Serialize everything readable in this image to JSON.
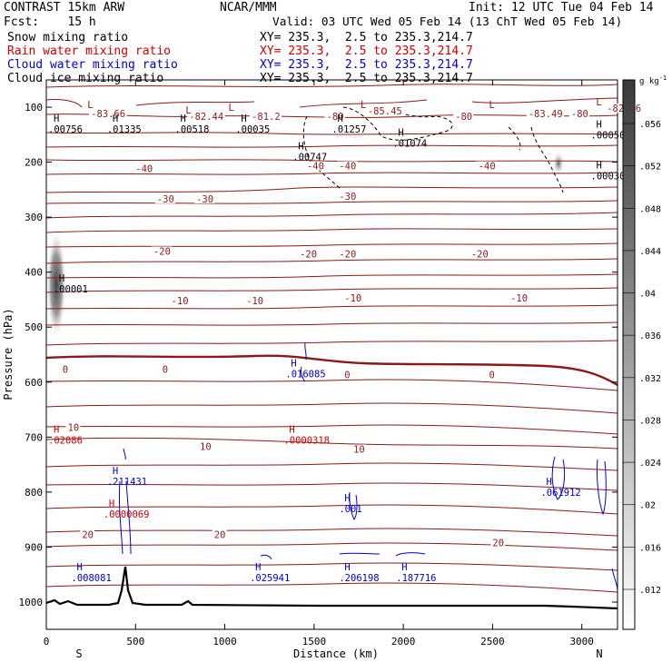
{
  "header": {
    "title": "CONTRAST 15km ARW",
    "center": "NCAR/MMM",
    "init": "Init: 12 UTC Tue 04 Feb 14",
    "fcst": "Fcst:    15 h",
    "valid": "Valid: 03 UTC Wed 05 Feb 14 (13 ChT Wed 05 Feb 14)"
  },
  "fields": [
    {
      "name": "Snow mixing ratio",
      "xy": "XY= 235.3,  2.5 to 235.3,214.7",
      "color": "#000000"
    },
    {
      "name": "Rain water mixing ratio",
      "xy": "XY= 235.3,  2.5 to 235.3,214.7",
      "color": "#cc0000"
    },
    {
      "name": "Cloud water mixing ratio",
      "xy": "XY= 235.3,  2.5 to 235.3,214.7",
      "color": "#0000cc"
    },
    {
      "name": "Cloud ice mixing ratio",
      "xy": "XY= 235.3,  2.5 to 235.3,214.7",
      "color": "#000000"
    }
  ],
  "chart_data": {
    "type": "contour-cross-section",
    "xlabel": "Distance (km)",
    "ylabel": "Pressure (hPa)",
    "xlim": [
      0,
      3200
    ],
    "ylim": [
      1050,
      50
    ],
    "x_ticks": [
      0,
      500,
      1000,
      1500,
      2000,
      2500,
      3000
    ],
    "y_ticks": [
      100,
      200,
      300,
      400,
      500,
      600,
      700,
      800,
      900,
      1000
    ],
    "x_end_labels": [
      "S",
      "N"
    ],
    "temperature_contour_levels": [
      -80,
      -40,
      -30,
      -20,
      -10,
      0,
      10,
      20
    ],
    "temperature_labels": [
      {
        "text": "-83.66",
        "x": 250,
        "p": 115
      },
      {
        "text": "-82.44",
        "x": 800,
        "p": 120
      },
      {
        "text": "-81.2",
        "x": 1150,
        "p": 120
      },
      {
        "text": "-80",
        "x": 1570,
        "p": 120
      },
      {
        "text": "-85.45",
        "x": 1800,
        "p": 110
      },
      {
        "text": "-80",
        "x": 2290,
        "p": 120
      },
      {
        "text": "-83.49",
        "x": 2700,
        "p": 115
      },
      {
        "text": "-80",
        "x": 2940,
        "p": 115
      },
      {
        "text": "-82.56",
        "x": 3140,
        "p": 105
      },
      {
        "text": "-40",
        "x": 1460,
        "p": 210
      },
      {
        "text": "-40",
        "x": 1640,
        "p": 210
      },
      {
        "text": "-40",
        "x": 500,
        "p": 215
      },
      {
        "text": "-40",
        "x": 2420,
        "p": 210
      },
      {
        "text": "-30",
        "x": 620,
        "p": 270
      },
      {
        "text": "-30",
        "x": 840,
        "p": 270
      },
      {
        "text": "-30",
        "x": 1640,
        "p": 265
      },
      {
        "text": "-20",
        "x": 600,
        "p": 365
      },
      {
        "text": "-20",
        "x": 1420,
        "p": 370
      },
      {
        "text": "-20",
        "x": 1640,
        "p": 370
      },
      {
        "text": "-20",
        "x": 2380,
        "p": 370
      },
      {
        "text": "-10",
        "x": 700,
        "p": 455
      },
      {
        "text": "-10",
        "x": 1120,
        "p": 455
      },
      {
        "text": "-10",
        "x": 1670,
        "p": 450
      },
      {
        "text": "-10",
        "x": 2600,
        "p": 450
      },
      {
        "text": "0",
        "x": 90,
        "p": 580
      },
      {
        "text": "0",
        "x": 650,
        "p": 580
      },
      {
        "text": "0",
        "x": 1670,
        "p": 590
      },
      {
        "text": "0",
        "x": 2480,
        "p": 590
      },
      {
        "text": "10",
        "x": 860,
        "p": 720
      },
      {
        "text": "10",
        "x": 1720,
        "p": 725
      },
      {
        "text": "10",
        "x": 120,
        "p": 685
      },
      {
        "text": "20",
        "x": 200,
        "p": 880
      },
      {
        "text": "20",
        "x": 940,
        "p": 880
      },
      {
        "text": "20",
        "x": 2500,
        "p": 895
      }
    ],
    "low_markers": [
      {
        "x": 230,
        "p": 95
      },
      {
        "x": 780,
        "p": 105
      },
      {
        "x": 1020,
        "p": 100
      },
      {
        "x": 1760,
        "p": 95
      },
      {
        "x": 2480,
        "p": 95
      },
      {
        "x": 3080,
        "p": 90
      }
    ],
    "maxima_labels": [
      {
        "text": ".00756",
        "x": 0,
        "p": 140,
        "color": "#000000"
      },
      {
        "text": ".01335",
        "x": 340,
        "p": 140,
        "color": "#000000"
      },
      {
        "text": ".00518",
        "x": 720,
        "p": 140,
        "color": "#000000"
      },
      {
        "text": ".00035",
        "x": 1060,
        "p": 140,
        "color": "#000000"
      },
      {
        "text": ".01257",
        "x": 1600,
        "p": 140,
        "color": "#000000"
      },
      {
        "text": ".01074",
        "x": 1940,
        "p": 165,
        "color": "#000000"
      },
      {
        "text": ".00747",
        "x": 1380,
        "p": 190,
        "color": "#000000"
      },
      {
        "text": ".00050",
        "x": 3050,
        "p": 150,
        "color": "#000000"
      },
      {
        "text": ".00030",
        "x": 3050,
        "p": 225,
        "color": "#000000"
      },
      {
        "text": ".00001",
        "x": 40,
        "p": 430,
        "color": "#000000"
      },
      {
        "text": ".016085",
        "x": 1340,
        "p": 585,
        "color": "#0000cc"
      },
      {
        "text": ".02086",
        "x": 0,
        "p": 705,
        "color": "#cc0000"
      },
      {
        "text": ".0000318",
        "x": 1330,
        "p": 705,
        "color": "#cc0000"
      },
      {
        "text": ".211431",
        "x": 340,
        "p": 780,
        "color": "#0000cc"
      },
      {
        "text": ".0000069",
        "x": 320,
        "p": 840,
        "color": "#cc0000"
      },
      {
        "text": ".001",
        "x": 1640,
        "p": 830,
        "color": "#0000cc"
      },
      {
        "text": ".061912",
        "x": 2770,
        "p": 800,
        "color": "#0000cc"
      },
      {
        "text": ".008081",
        "x": 140,
        "p": 955,
        "color": "#0000cc"
      },
      {
        "text": ".025941",
        "x": 1140,
        "p": 955,
        "color": "#0000cc"
      },
      {
        "text": ".206198",
        "x": 1640,
        "p": 955,
        "color": "#0000cc"
      },
      {
        "text": ".187716",
        "x": 1960,
        "p": 955,
        "color": "#0000cc"
      }
    ],
    "colorbar": {
      "unit_label": "g kg",
      "unit_exp": "-1",
      "ticks": [
        ".012",
        ".016",
        ".02",
        ".024",
        ".028",
        ".032",
        ".036",
        ".04",
        ".044",
        ".048",
        ".052",
        ".056"
      ]
    }
  }
}
